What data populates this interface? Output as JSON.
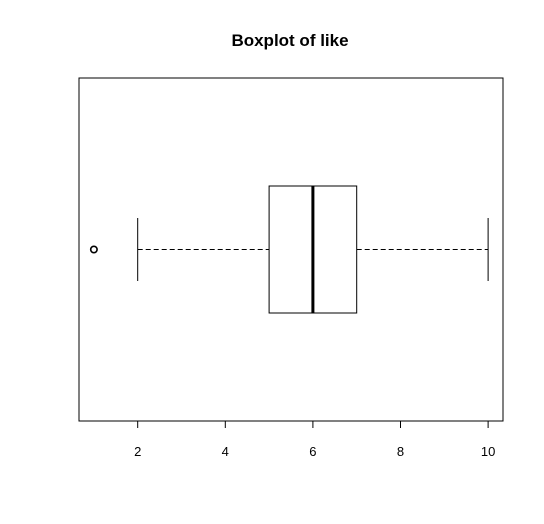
{
  "chart_data": {
    "type": "boxplot",
    "orientation": "horizontal",
    "title": "Boxplot of like",
    "xlabel": "",
    "ylabel": "",
    "xlim": [
      0.66,
      10.34
    ],
    "ticks": [
      2,
      4,
      6,
      8,
      10
    ],
    "tick_labels": [
      "2",
      "4",
      "6",
      "8",
      "10"
    ],
    "box": {
      "whisker_low": 2,
      "q1": 5,
      "median": 6,
      "q3": 7,
      "whisker_high": 10,
      "outliers": [
        1
      ]
    },
    "grid": false,
    "legend": "none",
    "colors": {
      "stroke": "#000000",
      "background": "#ffffff"
    }
  }
}
